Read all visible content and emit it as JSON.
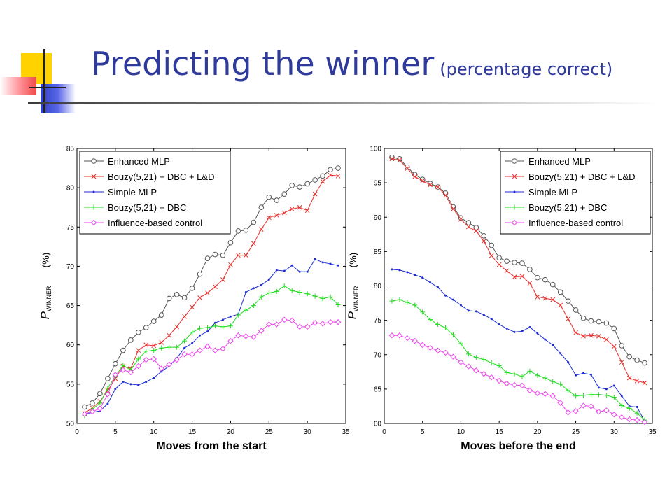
{
  "slide": {
    "title": "Predicting the winner",
    "subtitle": "(percentage correct)"
  },
  "colors": {
    "title": "#2f3b9b",
    "deco_yellow": "#ffd200",
    "deco_red": "#f04a4a",
    "deco_blue": "#2f3fc8"
  },
  "chart_data": [
    {
      "type": "line",
      "xlabel": "Moves from the start",
      "ylabel": "P",
      "ylabel_sub": "WINNER",
      "ylabel_unit": "(%)",
      "xlim": [
        0,
        35
      ],
      "ylim": [
        50,
        85
      ],
      "xticks": [
        0,
        5,
        10,
        15,
        20,
        25,
        30,
        35
      ],
      "yticks": [
        50,
        55,
        60,
        65,
        70,
        75,
        80,
        85
      ],
      "legend_position": "top-left",
      "x": [
        1,
        2,
        3,
        4,
        5,
        6,
        7,
        8,
        9,
        10,
        11,
        12,
        13,
        14,
        15,
        16,
        17,
        18,
        19,
        20,
        21,
        22,
        23,
        24,
        25,
        26,
        27,
        28,
        29,
        30,
        31,
        32,
        33,
        34
      ],
      "series": [
        {
          "name": "Enhanced MLP",
          "color": "#555555",
          "marker": "circle",
          "values": [
            52.1,
            52.6,
            53.8,
            55.7,
            57.6,
            59.3,
            60.6,
            61.6,
            62.2,
            63.0,
            63.8,
            65.9,
            66.4,
            66.0,
            67.2,
            69.0,
            71.0,
            71.5,
            71.4,
            73.0,
            74.5,
            74.6,
            75.6,
            77.5,
            78.8,
            78.4,
            79.2,
            80.3,
            80.1,
            80.5,
            81.0,
            81.5,
            82.3,
            82.5
          ]
        },
        {
          "name": "Bouzy(5,21) + DBC + L&D",
          "color": "#e8302c",
          "marker": "x",
          "values": [
            51.3,
            52.0,
            52.8,
            54.2,
            55.7,
            57.3,
            57.0,
            59.3,
            60.0,
            59.9,
            60.3,
            61.2,
            62.3,
            63.6,
            64.8,
            66.0,
            66.6,
            67.4,
            68.3,
            70.2,
            71.4,
            71.4,
            72.9,
            74.7,
            76.2,
            76.5,
            76.8,
            77.3,
            77.5,
            77.1,
            79.2,
            80.8,
            81.6,
            81.5
          ]
        },
        {
          "name": "Simple MLP",
          "color": "#1c2bd4",
          "marker": "dot",
          "values": [
            51.2,
            51.4,
            51.6,
            52.5,
            54.4,
            55.3,
            55.0,
            54.9,
            55.3,
            55.8,
            56.6,
            57.3,
            58.3,
            59.6,
            60.2,
            61.2,
            61.7,
            62.8,
            63.2,
            63.6,
            63.9,
            66.7,
            67.2,
            67.6,
            68.3,
            69.5,
            69.4,
            70.1,
            69.3,
            69.3,
            70.9,
            70.5,
            70.3,
            70.1
          ]
        },
        {
          "name": "Bouzy(5,21) + DBC",
          "color": "#22dd22",
          "marker": "plus",
          "values": [
            51.0,
            51.8,
            52.6,
            54.5,
            56.0,
            57.4,
            56.8,
            58.2,
            59.2,
            59.3,
            59.6,
            59.7,
            59.7,
            60.5,
            61.6,
            62.1,
            62.2,
            62.4,
            62.3,
            62.4,
            63.8,
            64.4,
            65.0,
            66.1,
            66.6,
            66.8,
            67.5,
            66.9,
            66.7,
            66.5,
            66.2,
            65.9,
            66.1,
            65.1
          ]
        },
        {
          "name": "Influence-based control",
          "color": "#ee44ee",
          "marker": "diamond",
          "values": [
            51.2,
            51.5,
            51.9,
            53.7,
            56.2,
            56.8,
            56.5,
            57.3,
            58.1,
            58.2,
            57.0,
            57.5,
            58.1,
            58.8,
            58.8,
            59.3,
            59.8,
            59.3,
            59.5,
            60.5,
            61.2,
            61.1,
            61.0,
            61.8,
            62.6,
            62.6,
            63.2,
            63.1,
            62.3,
            62.3,
            62.8,
            62.7,
            62.9,
            62.9
          ]
        }
      ]
    },
    {
      "type": "line",
      "xlabel": "Moves before the end",
      "ylabel": "P",
      "ylabel_sub": "WINNER",
      "ylabel_unit": "(%)",
      "xlim": [
        0,
        35
      ],
      "ylim": [
        60,
        100
      ],
      "xticks": [
        0,
        5,
        10,
        15,
        20,
        25,
        30,
        35
      ],
      "yticks": [
        60,
        65,
        70,
        75,
        80,
        85,
        90,
        95,
        100
      ],
      "legend_position": "top-right",
      "x": [
        1,
        2,
        3,
        4,
        5,
        6,
        7,
        8,
        9,
        10,
        11,
        12,
        13,
        14,
        15,
        16,
        17,
        18,
        19,
        20,
        21,
        22,
        23,
        24,
        25,
        26,
        27,
        28,
        29,
        30,
        31,
        32,
        33,
        34
      ],
      "series": [
        {
          "name": "Enhanced MLP",
          "color": "#555555",
          "marker": "circle",
          "values": [
            98.7,
            98.5,
            97.3,
            96.2,
            95.5,
            94.9,
            94.4,
            93.5,
            91.5,
            89.9,
            89.2,
            88.5,
            87.3,
            85.9,
            84.1,
            83.6,
            83.4,
            83.3,
            82.4,
            81.2,
            80.9,
            80.2,
            79.1,
            77.8,
            76.5,
            75.3,
            74.9,
            74.8,
            74.6,
            73.8,
            71.3,
            69.7,
            69.2,
            68.8
          ]
        },
        {
          "name": "Bouzy(5,21) + DBC + L&D",
          "color": "#e8302c",
          "marker": "x",
          "values": [
            98.5,
            98.3,
            97.1,
            95.9,
            95.3,
            94.7,
            94.4,
            93.2,
            91.2,
            89.7,
            88.6,
            88.0,
            86.5,
            84.4,
            83.1,
            82.2,
            81.3,
            81.4,
            80.4,
            78.4,
            78.2,
            78.0,
            77.2,
            75.2,
            73.2,
            72.7,
            72.8,
            72.7,
            72.2,
            71.2,
            68.9,
            66.6,
            66.2,
            65.9
          ]
        },
        {
          "name": "Simple MLP",
          "color": "#1c2bd4",
          "marker": "dot",
          "values": [
            82.4,
            82.3,
            82.0,
            81.6,
            81.2,
            80.5,
            79.8,
            78.6,
            78.0,
            77.2,
            76.4,
            76.3,
            75.8,
            75.2,
            74.4,
            73.8,
            73.3,
            73.4,
            74.0,
            73.1,
            72.2,
            71.4,
            70.2,
            68.9,
            67.0,
            67.3,
            67.1,
            65.2,
            65.0,
            65.5,
            64.0,
            62.5,
            62.4,
            60.3
          ]
        },
        {
          "name": "Bouzy(5,21) + DBC",
          "color": "#22dd22",
          "marker": "plus",
          "values": [
            77.8,
            78.0,
            77.6,
            77.2,
            76.2,
            75.1,
            74.4,
            73.9,
            72.9,
            71.6,
            70.1,
            69.6,
            69.3,
            68.8,
            68.4,
            67.4,
            67.2,
            66.8,
            67.6,
            67.0,
            66.6,
            66.1,
            65.7,
            64.8,
            64.0,
            64.1,
            64.2,
            64.2,
            64.1,
            63.8,
            62.6,
            62.2,
            61.5,
            60.5
          ]
        },
        {
          "name": "Influence-based control",
          "color": "#ee44ee",
          "marker": "diamond",
          "values": [
            72.8,
            72.8,
            72.4,
            72.0,
            71.4,
            71.0,
            70.6,
            70.3,
            69.7,
            68.9,
            68.3,
            67.7,
            67.2,
            66.7,
            66.2,
            65.8,
            65.6,
            65.5,
            64.8,
            64.4,
            64.3,
            64.0,
            63.0,
            61.6,
            61.8,
            62.6,
            62.5,
            61.7,
            61.9,
            61.3,
            60.9,
            60.6,
            60.5,
            60.2
          ]
        }
      ]
    }
  ]
}
